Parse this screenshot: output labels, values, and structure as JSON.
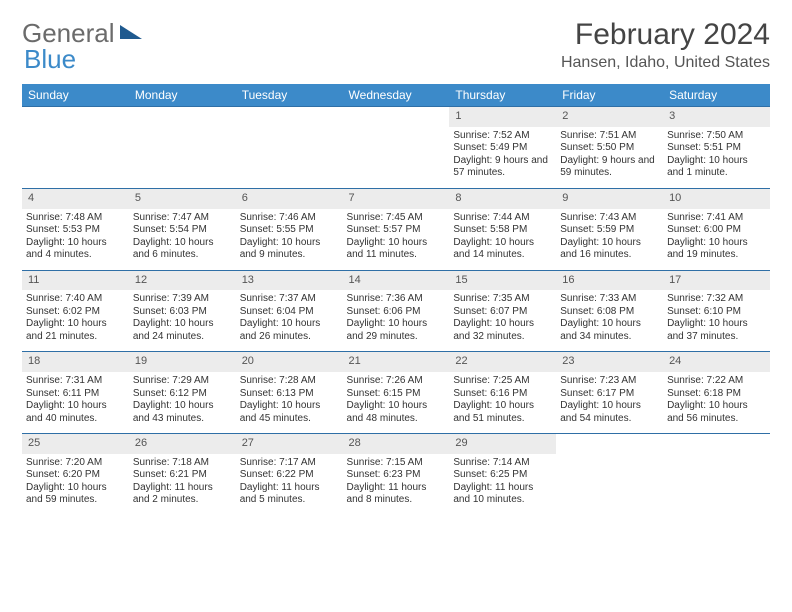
{
  "logo": {
    "part1": "General",
    "part2": "Blue"
  },
  "title": "February 2024",
  "location": "Hansen, Idaho, United States",
  "colors": {
    "header_bg": "#3c8ac9",
    "header_text": "#ffffff",
    "daynum_bg": "#ececec",
    "border": "#2f6fa6",
    "logo_gray": "#6b6b6b",
    "logo_blue": "#3c8ac9"
  },
  "weekdays": [
    "Sunday",
    "Monday",
    "Tuesday",
    "Wednesday",
    "Thursday",
    "Friday",
    "Saturday"
  ],
  "weeks": [
    [
      null,
      null,
      null,
      null,
      {
        "n": "1",
        "sr": "Sunrise: 7:52 AM",
        "ss": "Sunset: 5:49 PM",
        "dl": "Daylight: 9 hours and 57 minutes."
      },
      {
        "n": "2",
        "sr": "Sunrise: 7:51 AM",
        "ss": "Sunset: 5:50 PM",
        "dl": "Daylight: 9 hours and 59 minutes."
      },
      {
        "n": "3",
        "sr": "Sunrise: 7:50 AM",
        "ss": "Sunset: 5:51 PM",
        "dl": "Daylight: 10 hours and 1 minute."
      }
    ],
    [
      {
        "n": "4",
        "sr": "Sunrise: 7:48 AM",
        "ss": "Sunset: 5:53 PM",
        "dl": "Daylight: 10 hours and 4 minutes."
      },
      {
        "n": "5",
        "sr": "Sunrise: 7:47 AM",
        "ss": "Sunset: 5:54 PM",
        "dl": "Daylight: 10 hours and 6 minutes."
      },
      {
        "n": "6",
        "sr": "Sunrise: 7:46 AM",
        "ss": "Sunset: 5:55 PM",
        "dl": "Daylight: 10 hours and 9 minutes."
      },
      {
        "n": "7",
        "sr": "Sunrise: 7:45 AM",
        "ss": "Sunset: 5:57 PM",
        "dl": "Daylight: 10 hours and 11 minutes."
      },
      {
        "n": "8",
        "sr": "Sunrise: 7:44 AM",
        "ss": "Sunset: 5:58 PM",
        "dl": "Daylight: 10 hours and 14 minutes."
      },
      {
        "n": "9",
        "sr": "Sunrise: 7:43 AM",
        "ss": "Sunset: 5:59 PM",
        "dl": "Daylight: 10 hours and 16 minutes."
      },
      {
        "n": "10",
        "sr": "Sunrise: 7:41 AM",
        "ss": "Sunset: 6:00 PM",
        "dl": "Daylight: 10 hours and 19 minutes."
      }
    ],
    [
      {
        "n": "11",
        "sr": "Sunrise: 7:40 AM",
        "ss": "Sunset: 6:02 PM",
        "dl": "Daylight: 10 hours and 21 minutes."
      },
      {
        "n": "12",
        "sr": "Sunrise: 7:39 AM",
        "ss": "Sunset: 6:03 PM",
        "dl": "Daylight: 10 hours and 24 minutes."
      },
      {
        "n": "13",
        "sr": "Sunrise: 7:37 AM",
        "ss": "Sunset: 6:04 PM",
        "dl": "Daylight: 10 hours and 26 minutes."
      },
      {
        "n": "14",
        "sr": "Sunrise: 7:36 AM",
        "ss": "Sunset: 6:06 PM",
        "dl": "Daylight: 10 hours and 29 minutes."
      },
      {
        "n": "15",
        "sr": "Sunrise: 7:35 AM",
        "ss": "Sunset: 6:07 PM",
        "dl": "Daylight: 10 hours and 32 minutes."
      },
      {
        "n": "16",
        "sr": "Sunrise: 7:33 AM",
        "ss": "Sunset: 6:08 PM",
        "dl": "Daylight: 10 hours and 34 minutes."
      },
      {
        "n": "17",
        "sr": "Sunrise: 7:32 AM",
        "ss": "Sunset: 6:10 PM",
        "dl": "Daylight: 10 hours and 37 minutes."
      }
    ],
    [
      {
        "n": "18",
        "sr": "Sunrise: 7:31 AM",
        "ss": "Sunset: 6:11 PM",
        "dl": "Daylight: 10 hours and 40 minutes."
      },
      {
        "n": "19",
        "sr": "Sunrise: 7:29 AM",
        "ss": "Sunset: 6:12 PM",
        "dl": "Daylight: 10 hours and 43 minutes."
      },
      {
        "n": "20",
        "sr": "Sunrise: 7:28 AM",
        "ss": "Sunset: 6:13 PM",
        "dl": "Daylight: 10 hours and 45 minutes."
      },
      {
        "n": "21",
        "sr": "Sunrise: 7:26 AM",
        "ss": "Sunset: 6:15 PM",
        "dl": "Daylight: 10 hours and 48 minutes."
      },
      {
        "n": "22",
        "sr": "Sunrise: 7:25 AM",
        "ss": "Sunset: 6:16 PM",
        "dl": "Daylight: 10 hours and 51 minutes."
      },
      {
        "n": "23",
        "sr": "Sunrise: 7:23 AM",
        "ss": "Sunset: 6:17 PM",
        "dl": "Daylight: 10 hours and 54 minutes."
      },
      {
        "n": "24",
        "sr": "Sunrise: 7:22 AM",
        "ss": "Sunset: 6:18 PM",
        "dl": "Daylight: 10 hours and 56 minutes."
      }
    ],
    [
      {
        "n": "25",
        "sr": "Sunrise: 7:20 AM",
        "ss": "Sunset: 6:20 PM",
        "dl": "Daylight: 10 hours and 59 minutes."
      },
      {
        "n": "26",
        "sr": "Sunrise: 7:18 AM",
        "ss": "Sunset: 6:21 PM",
        "dl": "Daylight: 11 hours and 2 minutes."
      },
      {
        "n": "27",
        "sr": "Sunrise: 7:17 AM",
        "ss": "Sunset: 6:22 PM",
        "dl": "Daylight: 11 hours and 5 minutes."
      },
      {
        "n": "28",
        "sr": "Sunrise: 7:15 AM",
        "ss": "Sunset: 6:23 PM",
        "dl": "Daylight: 11 hours and 8 minutes."
      },
      {
        "n": "29",
        "sr": "Sunrise: 7:14 AM",
        "ss": "Sunset: 6:25 PM",
        "dl": "Daylight: 11 hours and 10 minutes."
      },
      null,
      null
    ]
  ]
}
